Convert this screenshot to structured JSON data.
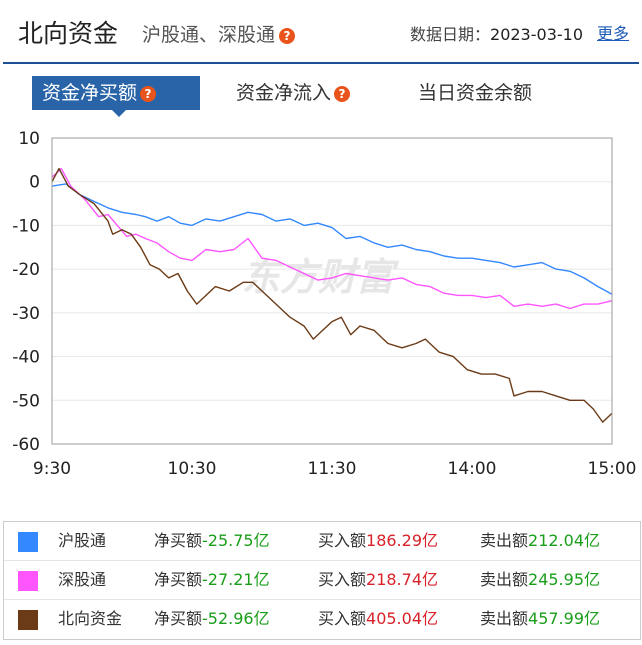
{
  "header": {
    "title": "北向资金",
    "subtitle": "沪股通、深股通",
    "date_label": "数据日期：",
    "date_value": "2023-03-10",
    "more_label": "更多"
  },
  "tabs": [
    {
      "label": "资金净买额"
    },
    {
      "label": "资金净流入"
    },
    {
      "label": "当日资金余额"
    }
  ],
  "watermark": "东方财富",
  "colors": {
    "shanghai": "#3388ff",
    "shenzhen": "#ff55ff",
    "northbound": "#6b3a16",
    "tab_active": "#2a64a8",
    "green": "#1a9e1a",
    "red": "#d9222a"
  },
  "chart_data": {
    "type": "line",
    "xlabel": "",
    "ylabel": "",
    "x_ticks": [
      "9:30",
      "10:30",
      "11:30",
      "14:00",
      "15:00"
    ],
    "y_ticks": [
      10,
      0,
      -10,
      -20,
      -30,
      -40,
      -50,
      -60
    ],
    "ylim": [
      -60,
      10
    ],
    "grid": true,
    "series": [
      {
        "name": "沪股通",
        "points": [
          [
            0,
            -1
          ],
          [
            6,
            -0.5
          ],
          [
            12,
            -3
          ],
          [
            18,
            -4.5
          ],
          [
            24,
            -6
          ],
          [
            30,
            -7
          ],
          [
            36,
            -7.5
          ],
          [
            40,
            -8
          ],
          [
            45,
            -9
          ],
          [
            50,
            -8
          ],
          [
            55,
            -9.5
          ],
          [
            60,
            -10
          ],
          [
            66,
            -8.5
          ],
          [
            72,
            -9
          ],
          [
            78,
            -8
          ],
          [
            84,
            -7
          ],
          [
            90,
            -7.5
          ],
          [
            96,
            -9
          ],
          [
            102,
            -8.5
          ],
          [
            108,
            -10
          ],
          [
            114,
            -9.5
          ],
          [
            120,
            -10.5
          ],
          [
            126,
            -13
          ],
          [
            132,
            -12.5
          ],
          [
            138,
            -14
          ],
          [
            144,
            -15
          ],
          [
            150,
            -14.5
          ],
          [
            156,
            -15.5
          ],
          [
            162,
            -16
          ],
          [
            168,
            -17
          ],
          [
            174,
            -17.5
          ],
          [
            180,
            -17.5
          ],
          [
            186,
            -18
          ],
          [
            192,
            -18.5
          ],
          [
            198,
            -19.5
          ],
          [
            204,
            -19
          ],
          [
            210,
            -18.5
          ],
          [
            216,
            -20
          ],
          [
            222,
            -20.5
          ],
          [
            228,
            -22
          ],
          [
            234,
            -24
          ],
          [
            240,
            -25.75
          ]
        ]
      },
      {
        "name": "深股通",
        "points": [
          [
            0,
            1
          ],
          [
            4,
            3
          ],
          [
            8,
            -1
          ],
          [
            14,
            -4
          ],
          [
            20,
            -8
          ],
          [
            24,
            -7.5
          ],
          [
            28,
            -10
          ],
          [
            32,
            -12.5
          ],
          [
            36,
            -12
          ],
          [
            40,
            -13
          ],
          [
            45,
            -14
          ],
          [
            50,
            -16
          ],
          [
            55,
            -17.5
          ],
          [
            60,
            -18
          ],
          [
            66,
            -15.5
          ],
          [
            72,
            -16
          ],
          [
            78,
            -15.5
          ],
          [
            84,
            -13
          ],
          [
            90,
            -17.5
          ],
          [
            96,
            -18
          ],
          [
            102,
            -19.5
          ],
          [
            108,
            -21
          ],
          [
            114,
            -22.5
          ],
          [
            120,
            -22
          ],
          [
            126,
            -21
          ],
          [
            132,
            -21.5
          ],
          [
            138,
            -22
          ],
          [
            144,
            -22.5
          ],
          [
            150,
            -22
          ],
          [
            156,
            -23.5
          ],
          [
            162,
            -24
          ],
          [
            168,
            -25.5
          ],
          [
            174,
            -26
          ],
          [
            180,
            -26
          ],
          [
            186,
            -26.5
          ],
          [
            192,
            -26
          ],
          [
            198,
            -28.5
          ],
          [
            204,
            -28
          ],
          [
            210,
            -28.5
          ],
          [
            216,
            -28
          ],
          [
            222,
            -29
          ],
          [
            228,
            -28
          ],
          [
            234,
            -28
          ],
          [
            240,
            -27.21
          ]
        ]
      },
      {
        "name": "北向资金",
        "points": [
          [
            0,
            0
          ],
          [
            3,
            3
          ],
          [
            7,
            -1
          ],
          [
            12,
            -3
          ],
          [
            18,
            -5
          ],
          [
            24,
            -9
          ],
          [
            26,
            -12
          ],
          [
            30,
            -11
          ],
          [
            34,
            -12
          ],
          [
            38,
            -15
          ],
          [
            42,
            -19
          ],
          [
            46,
            -20
          ],
          [
            50,
            -22
          ],
          [
            54,
            -21
          ],
          [
            58,
            -25
          ],
          [
            62,
            -28
          ],
          [
            66,
            -26
          ],
          [
            70,
            -24
          ],
          [
            76,
            -25
          ],
          [
            82,
            -23
          ],
          [
            86,
            -23
          ],
          [
            90,
            -25
          ],
          [
            96,
            -28
          ],
          [
            102,
            -31
          ],
          [
            108,
            -33
          ],
          [
            112,
            -36
          ],
          [
            116,
            -34
          ],
          [
            120,
            -32
          ],
          [
            124,
            -31
          ],
          [
            128,
            -35
          ],
          [
            132,
            -33
          ],
          [
            138,
            -34
          ],
          [
            144,
            -37
          ],
          [
            150,
            -38
          ],
          [
            156,
            -37
          ],
          [
            160,
            -36
          ],
          [
            166,
            -39
          ],
          [
            172,
            -40
          ],
          [
            178,
            -43
          ],
          [
            184,
            -44
          ],
          [
            190,
            -44
          ],
          [
            196,
            -45
          ],
          [
            198,
            -49
          ],
          [
            204,
            -48
          ],
          [
            210,
            -48
          ],
          [
            216,
            -49
          ],
          [
            222,
            -50
          ],
          [
            228,
            -50
          ],
          [
            232,
            -52
          ],
          [
            236,
            -55
          ],
          [
            240,
            -52.96
          ]
        ]
      }
    ]
  },
  "legend": {
    "rows": [
      {
        "name": "沪股通",
        "net_label": "净买额",
        "net_value": "-25.75亿",
        "buy_label": "买入额",
        "buy_value": "186.29亿",
        "sell_label": "卖出额",
        "sell_value": "212.04亿"
      },
      {
        "name": "深股通",
        "net_label": "净买额",
        "net_value": "-27.21亿",
        "buy_label": "买入额",
        "buy_value": "218.74亿",
        "sell_label": "卖出额",
        "sell_value": "245.95亿"
      },
      {
        "name": "北向资金",
        "net_label": "净买额",
        "net_value": "-52.96亿",
        "buy_label": "买入额",
        "buy_value": "405.04亿",
        "sell_label": "卖出额",
        "sell_value": "457.99亿"
      }
    ]
  }
}
